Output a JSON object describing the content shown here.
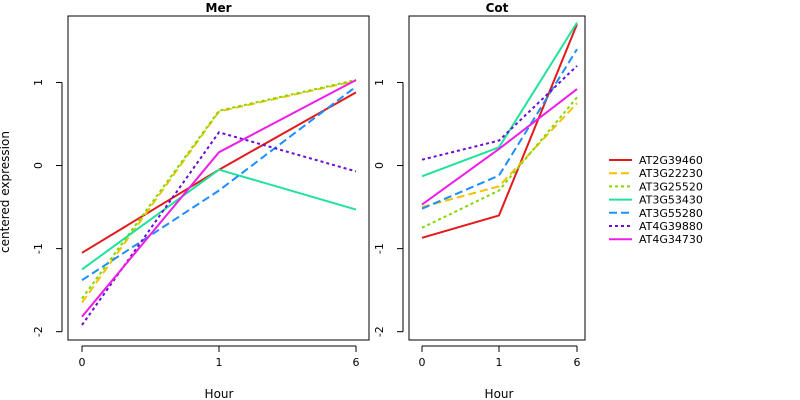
{
  "figure": {
    "ylabel": "centered expression",
    "xlabel": "Hour"
  },
  "legend": [
    "AT2G39460",
    "AT3G22230",
    "AT3G25520",
    "AT3G53430",
    "AT3G55280",
    "AT4G39880",
    "AT4G34730"
  ],
  "chart_data": [
    {
      "type": "line",
      "title": "Mer",
      "xlabel": "Hour",
      "ylabel": "centered expression",
      "x": [
        "0",
        "1",
        "6"
      ],
      "y_ticks": [
        -2,
        -1,
        0,
        1
      ],
      "ylim": [
        -2.1,
        1.8
      ],
      "series": [
        {
          "name": "AT2G39460",
          "color": "#e31a1c",
          "dash": "solid",
          "values": [
            -1.05,
            -0.05,
            0.88
          ]
        },
        {
          "name": "AT3G22230",
          "color": "#f2c200",
          "dash": "dashed",
          "values": [
            -1.65,
            0.65,
            1.02
          ]
        },
        {
          "name": "AT3G25520",
          "color": "#7fd800",
          "dash": "dotted",
          "values": [
            -1.6,
            0.66,
            1.03
          ]
        },
        {
          "name": "AT3G53430",
          "color": "#1ee39a",
          "dash": "solid",
          "values": [
            -1.25,
            -0.05,
            -0.53
          ]
        },
        {
          "name": "AT3G55280",
          "color": "#1e8fff",
          "dash": "dashed",
          "values": [
            -1.38,
            -0.3,
            0.95
          ]
        },
        {
          "name": "AT4G39880",
          "color": "#6a0dd6",
          "dash": "dotted",
          "values": [
            -1.92,
            0.4,
            -0.07
          ]
        },
        {
          "name": "AT4G34730",
          "color": "#ee1de8",
          "dash": "solid",
          "values": [
            -1.82,
            0.16,
            1.03
          ]
        }
      ]
    },
    {
      "type": "line",
      "title": "Cot",
      "xlabel": "Hour",
      "ylabel": "",
      "x": [
        "0",
        "1",
        "6"
      ],
      "y_ticks": [
        -2,
        -1,
        0,
        1
      ],
      "ylim": [
        -2.1,
        1.8
      ],
      "series": [
        {
          "name": "AT2G39460",
          "color": "#e31a1c",
          "dash": "solid",
          "values": [
            -0.87,
            -0.6,
            1.7
          ]
        },
        {
          "name": "AT3G22230",
          "color": "#f2c200",
          "dash": "dashed",
          "values": [
            -0.5,
            -0.25,
            0.75
          ]
        },
        {
          "name": "AT3G25520",
          "color": "#7fd800",
          "dash": "dotted",
          "values": [
            -0.75,
            -0.3,
            0.82
          ]
        },
        {
          "name": "AT3G53430",
          "color": "#1ee39a",
          "dash": "solid",
          "values": [
            -0.13,
            0.22,
            1.72
          ]
        },
        {
          "name": "AT3G55280",
          "color": "#1e8fff",
          "dash": "dashed",
          "values": [
            -0.52,
            -0.12,
            1.4
          ]
        },
        {
          "name": "AT4G39880",
          "color": "#6a0dd6",
          "dash": "dotted",
          "values": [
            0.07,
            0.3,
            1.2
          ]
        },
        {
          "name": "AT4G34730",
          "color": "#ee1de8",
          "dash": "solid",
          "values": [
            -0.47,
            0.2,
            0.92
          ]
        }
      ]
    }
  ]
}
